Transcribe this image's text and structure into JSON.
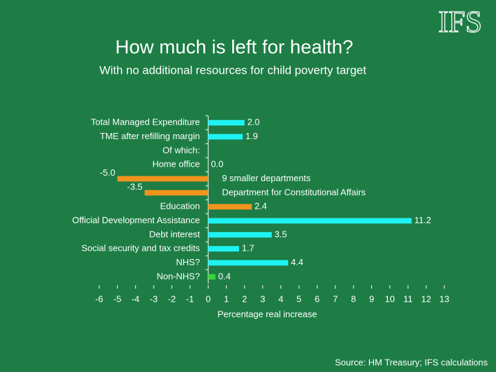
{
  "logo": "IFS",
  "chart_data": {
    "type": "bar",
    "orientation": "horizontal",
    "title": "How much is left for health?",
    "subtitle": "With no additional resources for child poverty target",
    "categories": [
      "Total Managed Expenditure",
      "TME after refilling margin",
      "Of which:",
      "Home office",
      "9 smaller departments",
      "Department for Constitutional Affairs",
      "Education",
      "Official Development Assistance",
      "Debt interest",
      "Social security and tax credits",
      "NHS?",
      "Non-NHS?"
    ],
    "values": [
      2.0,
      1.9,
      null,
      0.0,
      -5.0,
      -3.5,
      2.4,
      11.2,
      3.5,
      1.7,
      4.4,
      0.4
    ],
    "value_labels": [
      "2.0",
      "1.9",
      null,
      "0.0",
      "-5.0",
      "-3.5",
      "2.4",
      "11.2",
      "3.5",
      "1.7",
      "4.4",
      "0.4"
    ],
    "colors": [
      "#1ff2f2",
      "#1ff2f2",
      null,
      "#1ff2f2",
      "#f0941e",
      "#f0941e",
      "#f0941e",
      "#1ff2f2",
      "#1ff2f2",
      "#1ff2f2",
      "#1ff2f2",
      "#3ad43a"
    ],
    "xlabel": "Percentage real increase",
    "xlim": [
      -6,
      13
    ],
    "xticks": [
      -6,
      -5,
      -4,
      -3,
      -2,
      -1,
      0,
      1,
      2,
      3,
      4,
      5,
      6,
      7,
      8,
      9,
      10,
      11,
      12,
      13
    ],
    "source": "Source: HM Treasury; IFS calculations"
  }
}
